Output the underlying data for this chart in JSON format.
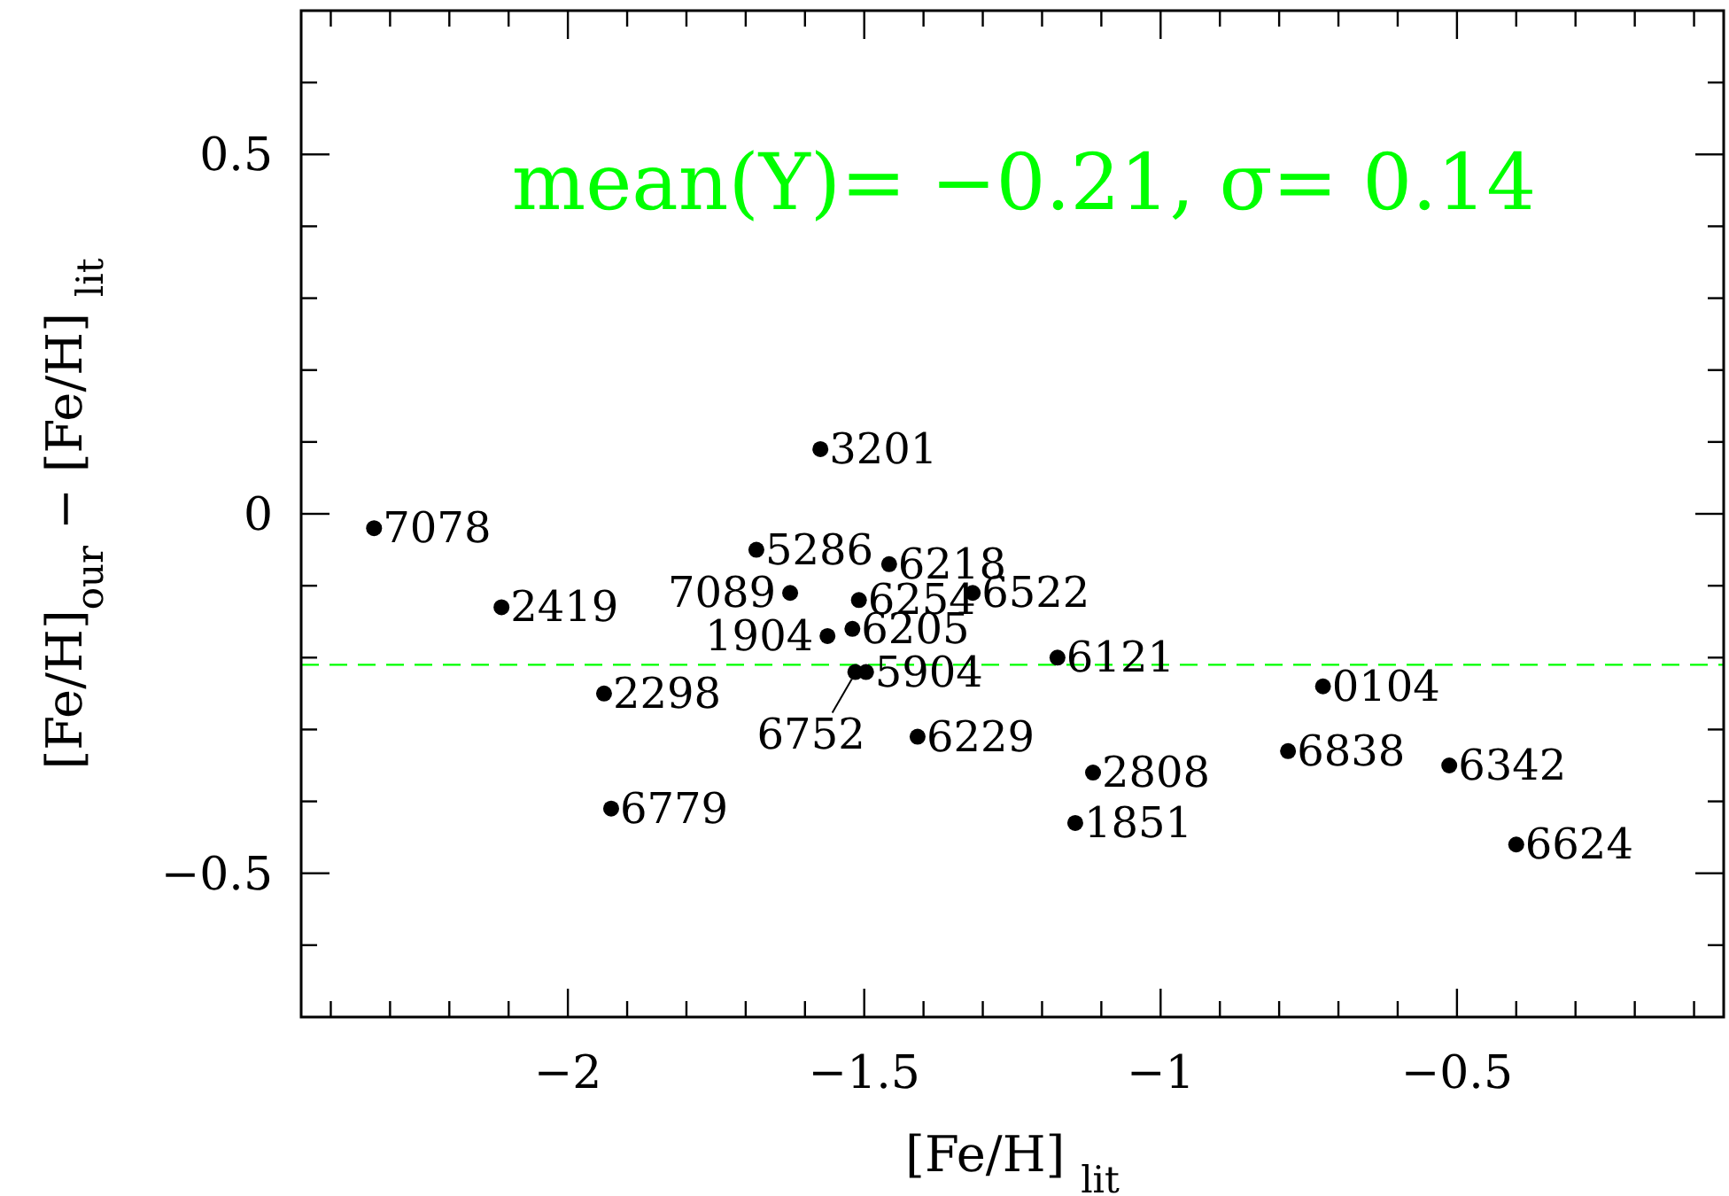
{
  "chart_data": {
    "type": "scatter",
    "xlabel": "[Fe/H] $_{lit}$",
    "ylabel": "[Fe/H]$_{our}$ − [Fe/H] $_{lit}$",
    "x": [
      -2.327,
      -1.574,
      -1.682,
      -1.458,
      -1.625,
      -2.112,
      -1.509,
      -1.317,
      -1.562,
      -1.52,
      -1.174,
      -0.726,
      -1.939,
      -1.515,
      -1.497,
      -1.41,
      -0.785,
      -0.513,
      -1.114,
      -1.144,
      -1.927,
      -0.4
    ],
    "series": [
      {
        "color": "#000000",
        "values": [
          -0.02,
          0.09,
          -0.05,
          -0.07,
          -0.11,
          -0.13,
          -0.12,
          -0.11,
          -0.17,
          -0.16,
          -0.2,
          -0.24,
          -0.25,
          -0.22,
          -0.22,
          -0.31,
          -0.33,
          -0.35,
          -0.36,
          -0.43,
          -0.41,
          -0.46
        ]
      }
    ],
    "marker": "circle",
    "grid": false,
    "xlim": [
      -2.45,
      -0.05
    ],
    "ylim": [
      -0.7,
      0.7
    ],
    "xticks": [
      {
        "value": -2.4,
        "label": null
      },
      {
        "value": -2.3,
        "label": null
      },
      {
        "value": -2.2,
        "label": null
      },
      {
        "value": -2.1,
        "label": null
      },
      {
        "value": -2,
        "label": "−2"
      },
      {
        "value": -1.9,
        "label": null
      },
      {
        "value": -1.8,
        "label": null
      },
      {
        "value": -1.7,
        "label": null
      },
      {
        "value": -1.6,
        "label": null
      },
      {
        "value": -1.5,
        "label": "−1.5"
      },
      {
        "value": -1.4,
        "label": null
      },
      {
        "value": -1.3,
        "label": null
      },
      {
        "value": -1.2,
        "label": null
      },
      {
        "value": -1.1,
        "label": null
      },
      {
        "value": -1,
        "label": "−1"
      },
      {
        "value": -0.9,
        "label": null
      },
      {
        "value": -0.8,
        "label": null
      },
      {
        "value": -0.7,
        "label": null
      },
      {
        "value": -0.6,
        "label": null
      },
      {
        "value": -0.5,
        "label": "−0.5"
      },
      {
        "value": -0.4,
        "label": null
      },
      {
        "value": -0.3,
        "label": null
      },
      {
        "value": -0.2,
        "label": null
      },
      {
        "value": -0.1,
        "label": null
      }
    ],
    "yticks": [
      {
        "value": -0.6,
        "label": null
      },
      {
        "value": -0.5,
        "label": "−0.5"
      },
      {
        "value": -0.4,
        "label": null
      },
      {
        "value": -0.3,
        "label": null
      },
      {
        "value": -0.2,
        "label": null
      },
      {
        "value": -0.1,
        "label": null
      },
      0,
      {
        "value": 0.1,
        "label": null
      },
      {
        "value": 0.2,
        "label": null
      },
      {
        "value": 0.3,
        "label": null
      },
      {
        "value": 0.4,
        "label": null
      },
      0.5,
      {
        "value": 0.6,
        "label": null
      }
    ],
    "ref_lines": [
      {
        "axis": "y",
        "value": -0.21,
        "color": "#00ff00",
        "line_style": "dashed"
      }
    ],
    "annotations": [
      "mean(Y)=  −0.21,  σ=  0.14",
      {
        "text": "7078",
        "x": -2.327,
        "y": -0.02
      },
      {
        "text": "3201",
        "x": -1.574,
        "y": 0.09
      },
      {
        "text": "5286",
        "x": -1.682,
        "y": -0.05
      },
      {
        "text": "6218",
        "x": -1.458,
        "y": -0.07
      },
      {
        "text": "7089",
        "x": -1.625,
        "y": -0.11
      },
      {
        "text": "2419",
        "x": -2.112,
        "y": -0.13
      },
      {
        "text": "6254",
        "x": -1.509,
        "y": -0.12
      },
      {
        "text": "6522",
        "x": -1.317,
        "y": -0.11
      },
      {
        "text": "1904",
        "x": -1.562,
        "y": -0.17
      },
      {
        "text": "6205",
        "x": -1.52,
        "y": -0.16
      },
      {
        "text": "6121",
        "x": -1.174,
        "y": -0.2
      },
      {
        "text": "0104",
        "x": -0.726,
        "y": -0.24
      },
      {
        "text": "2298",
        "x": -1.939,
        "y": -0.25
      },
      {
        "text": "6752",
        "x": -1.515,
        "y": -0.22
      },
      {
        "text": "5904",
        "x": -1.497,
        "y": -0.22
      },
      {
        "text": "6229",
        "x": -1.41,
        "y": -0.31
      },
      {
        "text": "6838",
        "x": -0.785,
        "y": -0.33
      },
      {
        "text": "6342",
        "x": -0.513,
        "y": -0.35
      },
      {
        "text": "2808",
        "x": -1.114,
        "y": -0.36
      },
      {
        "text": "1851",
        "x": -1.144,
        "y": -0.43
      },
      {
        "text": "6779",
        "x": -1.927,
        "y": -0.41
      },
      {
        "text": "6624",
        "x": -0.4,
        "y": -0.46
      }
    ]
  }
}
